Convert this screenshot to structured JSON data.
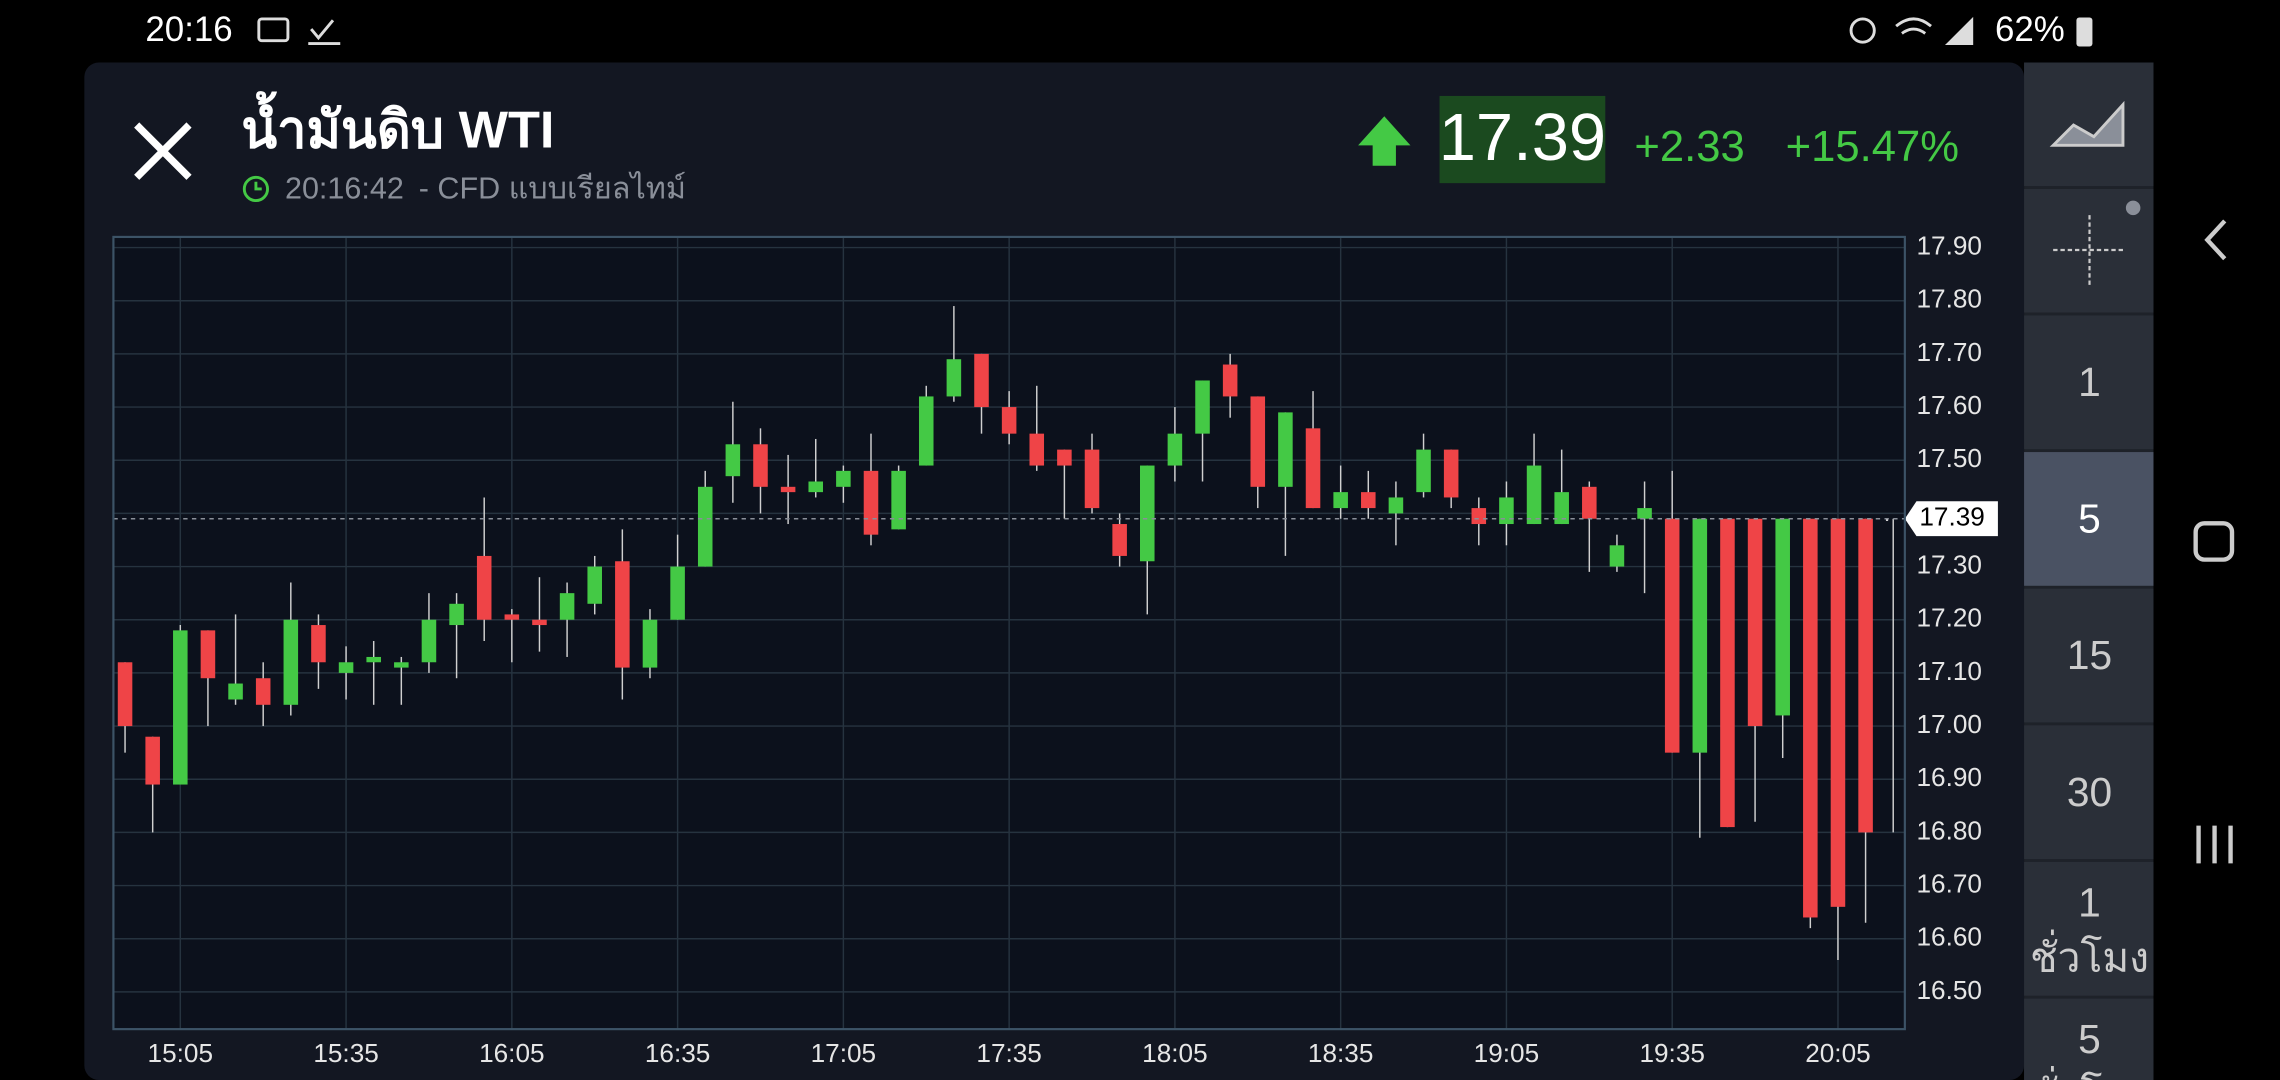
{
  "status_bar": {
    "time": "20:16",
    "battery": "62%"
  },
  "header": {
    "title": "น้ำมันดิบ WTI",
    "time": "20:16:42",
    "subtitle": "- CFD แบบเรียลไทม์",
    "price": "17.39",
    "change": "+2.33",
    "change_pct": "+15.47%"
  },
  "intervals": [
    {
      "label": "1"
    },
    {
      "label": "5"
    },
    {
      "label": "15"
    },
    {
      "label": "30"
    },
    {
      "label": "1",
      "unit": "ชั่วโมง"
    },
    {
      "label": "5",
      "unit": "ชั่วโมง"
    }
  ],
  "chart_data": {
    "type": "candlestick",
    "categories": [
      null,
      null,
      "15:05",
      null,
      null,
      null,
      null,
      null,
      "15:35",
      null,
      null,
      null,
      null,
      null,
      "16:05",
      null,
      null,
      null,
      null,
      null,
      "16:35",
      null,
      null,
      null,
      null,
      null,
      "17:05",
      null,
      null,
      null,
      null,
      null,
      "17:35",
      null,
      null,
      null,
      null,
      null,
      "18:05",
      null,
      null,
      null,
      null,
      null,
      "18:35",
      null,
      null,
      null,
      null,
      null,
      "19:05",
      null,
      null,
      null,
      null,
      null,
      "19:35",
      null,
      null,
      null,
      null,
      null,
      "20:05",
      null,
      null
    ],
    "open": [
      17.12,
      16.98,
      16.89,
      17.18,
      17.05,
      17.09,
      17.04,
      17.19,
      17.1,
      17.12,
      17.11,
      17.12,
      17.19,
      17.32,
      17.21,
      17.2,
      17.2,
      17.23,
      17.31,
      17.11,
      17.2,
      17.3,
      17.47,
      17.53,
      17.45,
      17.44,
      17.45,
      17.48,
      17.37,
      17.49,
      17.62,
      17.7,
      17.6,
      17.55,
      17.52,
      17.52,
      17.38,
      17.31,
      17.49,
      17.55,
      17.68,
      17.62,
      17.45,
      17.56,
      17.41,
      17.44,
      17.4,
      17.44,
      17.52,
      17.41,
      17.38,
      17.38,
      17.38,
      17.45,
      17.3,
      17.39,
      17.39,
      16.95,
      17.39,
      17.39,
      17.02,
      17.39,
      17.39,
      17.39,
      17.39
    ],
    "high": [
      17.12,
      16.98,
      17.19,
      17.18,
      17.21,
      17.12,
      17.27,
      17.21,
      17.15,
      17.16,
      17.13,
      17.25,
      17.25,
      17.43,
      17.22,
      17.28,
      17.27,
      17.32,
      17.37,
      17.22,
      17.36,
      17.48,
      17.61,
      17.56,
      17.51,
      17.54,
      17.49,
      17.55,
      17.49,
      17.64,
      17.79,
      17.7,
      17.63,
      17.64,
      17.52,
      17.55,
      17.4,
      17.49,
      17.6,
      17.65,
      17.7,
      17.62,
      17.59,
      17.63,
      17.49,
      17.48,
      17.46,
      17.55,
      17.52,
      17.43,
      17.46,
      17.55,
      17.52,
      17.46,
      17.36,
      17.46,
      17.48,
      17.39,
      17.39,
      17.39,
      17.39,
      17.39,
      17.39,
      17.39,
      17.39
    ],
    "low": [
      16.95,
      16.8,
      16.89,
      17.0,
      17.04,
      17.0,
      17.02,
      17.07,
      17.05,
      17.04,
      17.04,
      17.1,
      17.09,
      17.16,
      17.12,
      17.14,
      17.13,
      17.21,
      17.05,
      17.09,
      17.2,
      17.3,
      17.42,
      17.4,
      17.38,
      17.43,
      17.42,
      17.34,
      17.37,
      17.49,
      17.61,
      17.55,
      17.53,
      17.48,
      17.39,
      17.4,
      17.3,
      17.21,
      17.46,
      17.46,
      17.58,
      17.41,
      17.32,
      17.41,
      17.39,
      17.39,
      17.34,
      17.43,
      17.41,
      17.34,
      17.34,
      17.38,
      17.38,
      17.29,
      17.29,
      17.25,
      16.95,
      16.79,
      16.81,
      16.82,
      16.94,
      16.62,
      16.56,
      16.63,
      16.8
    ],
    "close": [
      17.0,
      16.89,
      17.18,
      17.09,
      17.08,
      17.04,
      17.2,
      17.12,
      17.12,
      17.13,
      17.12,
      17.2,
      17.23,
      17.2,
      17.2,
      17.19,
      17.25,
      17.3,
      17.11,
      17.2,
      17.3,
      17.45,
      17.53,
      17.45,
      17.44,
      17.46,
      17.48,
      17.36,
      17.48,
      17.62,
      17.69,
      17.6,
      17.55,
      17.49,
      17.49,
      17.41,
      17.32,
      17.49,
      17.55,
      17.65,
      17.62,
      17.45,
      17.59,
      17.41,
      17.44,
      17.41,
      17.43,
      17.52,
      17.43,
      17.38,
      17.43,
      17.49,
      17.44,
      17.39,
      17.34,
      17.41,
      16.95,
      17.39,
      16.81,
      17.0,
      17.39,
      16.64,
      16.66,
      16.8,
      17.39
    ],
    "up_color": "#44c945",
    "down_color": "#ef4447",
    "last": 17.39,
    "ylim": [
      16.43,
      17.92
    ],
    "yticks": [
      {
        "value": 17.9,
        "label": "17.90"
      },
      {
        "value": 17.8,
        "label": "17.80"
      },
      {
        "value": 17.7,
        "label": "17.70"
      },
      {
        "value": 17.6,
        "label": "17.60"
      },
      {
        "value": 17.5,
        "label": "17.50"
      },
      {
        "value": 17.4,
        "label": "17.40"
      },
      {
        "value": 17.3,
        "label": "17.30"
      },
      {
        "value": 17.2,
        "label": "17.20"
      },
      {
        "value": 17.1,
        "label": "17.10"
      },
      {
        "value": 17.0,
        "label": "17.00"
      },
      {
        "value": 16.9,
        "label": "16.90"
      },
      {
        "value": 16.8,
        "label": "16.80"
      },
      {
        "value": 16.7,
        "label": "16.70"
      },
      {
        "value": 16.6,
        "label": "16.60"
      },
      {
        "value": 16.5,
        "label": "16.50"
      }
    ],
    "grid": true
  }
}
